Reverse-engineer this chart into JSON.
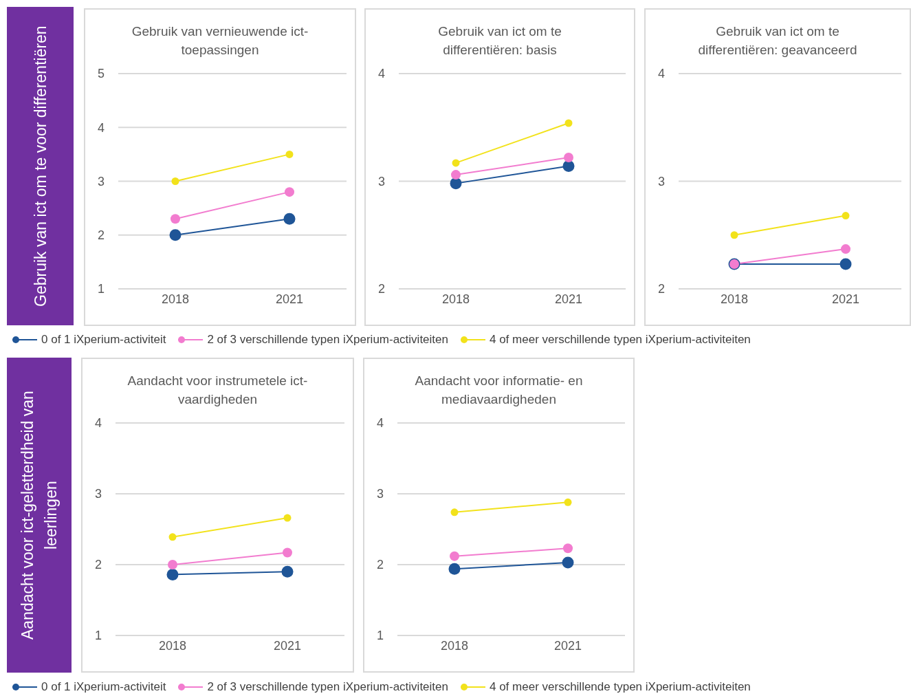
{
  "chart_data": [
    {
      "type": "line",
      "title": "Gebruik van vernieuwende ict-toepassingen",
      "annotations": [
        "Gebruik van ict om te voor differentiëren"
      ],
      "categories": [
        "2018",
        "2021"
      ],
      "ylim": [
        1,
        5
      ],
      "yticks": [
        1,
        2,
        3,
        4,
        5
      ],
      "grid": "y",
      "marker": "circle",
      "legend": "bottom",
      "series": [
        {
          "name": "0 of 1 iXperium-activiteit",
          "color": "#1f5597",
          "values": [
            2.0,
            2.3
          ]
        },
        {
          "name": "2 of 3 verschillende typen iXperium-activiteiten",
          "color": "#f27ccf",
          "values": [
            2.3,
            2.8
          ]
        },
        {
          "name": "4 of meer verschillende typen iXperium-activiteiten",
          "color": "#f2e21b",
          "values": [
            3.0,
            3.5
          ]
        }
      ]
    },
    {
      "type": "line",
      "title": "Gebruik van ict om te differentiëren: basis",
      "categories": [
        "2018",
        "2021"
      ],
      "ylim": [
        2,
        4
      ],
      "yticks": [
        2,
        3,
        4
      ],
      "grid": "y",
      "marker": "circle",
      "series": [
        {
          "color": "#1f5597",
          "values": [
            2.98,
            3.14
          ]
        },
        {
          "color": "#f27ccf",
          "values": [
            3.06,
            3.22
          ]
        },
        {
          "color": "#f2e21b",
          "values": [
            3.17,
            3.54
          ]
        }
      ]
    },
    {
      "type": "line",
      "title": "Gebruik van ict om te differentiëren: geavanceerd",
      "categories": [
        "2018",
        "2021"
      ],
      "ylim": [
        2,
        4
      ],
      "yticks": [
        2,
        3,
        4
      ],
      "grid": "y",
      "marker": "circle",
      "series": [
        {
          "color": "#1f5597",
          "values": [
            2.23,
            2.23
          ]
        },
        {
          "color": "#f27ccf",
          "values": [
            2.23,
            2.37
          ]
        },
        {
          "color": "#f2e21b",
          "values": [
            2.5,
            2.68
          ]
        }
      ]
    },
    {
      "type": "line",
      "title": "Aandacht voor instrumetele ict-vaardigheden",
      "annotations": [
        "Aandacht voor ict-geletterdheid van leerlingen"
      ],
      "categories": [
        "2018",
        "2021"
      ],
      "ylim": [
        1,
        4
      ],
      "yticks": [
        1,
        2,
        3,
        4
      ],
      "grid": "y",
      "marker": "circle",
      "legend": "bottom",
      "series": [
        {
          "name": "0 of 1 iXperium-activiteit",
          "color": "#1f5597",
          "values": [
            1.86,
            1.9
          ]
        },
        {
          "name": "2 of 3 verschillende typen iXperium-activiteiten",
          "color": "#f27ccf",
          "values": [
            2.0,
            2.17
          ]
        },
        {
          "name": "4 of meer verschillende typen iXperium-activiteiten",
          "color": "#f2e21b",
          "values": [
            2.39,
            2.66
          ]
        }
      ]
    },
    {
      "type": "line",
      "title": "Aandacht voor informatie- en mediavaardigheden",
      "categories": [
        "2018",
        "2021"
      ],
      "ylim": [
        1,
        4
      ],
      "yticks": [
        1,
        2,
        3,
        4
      ],
      "grid": "y",
      "marker": "circle",
      "series": [
        {
          "color": "#1f5597",
          "values": [
            1.94,
            2.03
          ]
        },
        {
          "color": "#f27ccf",
          "values": [
            2.12,
            2.23
          ]
        },
        {
          "color": "#f2e21b",
          "values": [
            2.74,
            2.88
          ]
        }
      ]
    }
  ]
}
